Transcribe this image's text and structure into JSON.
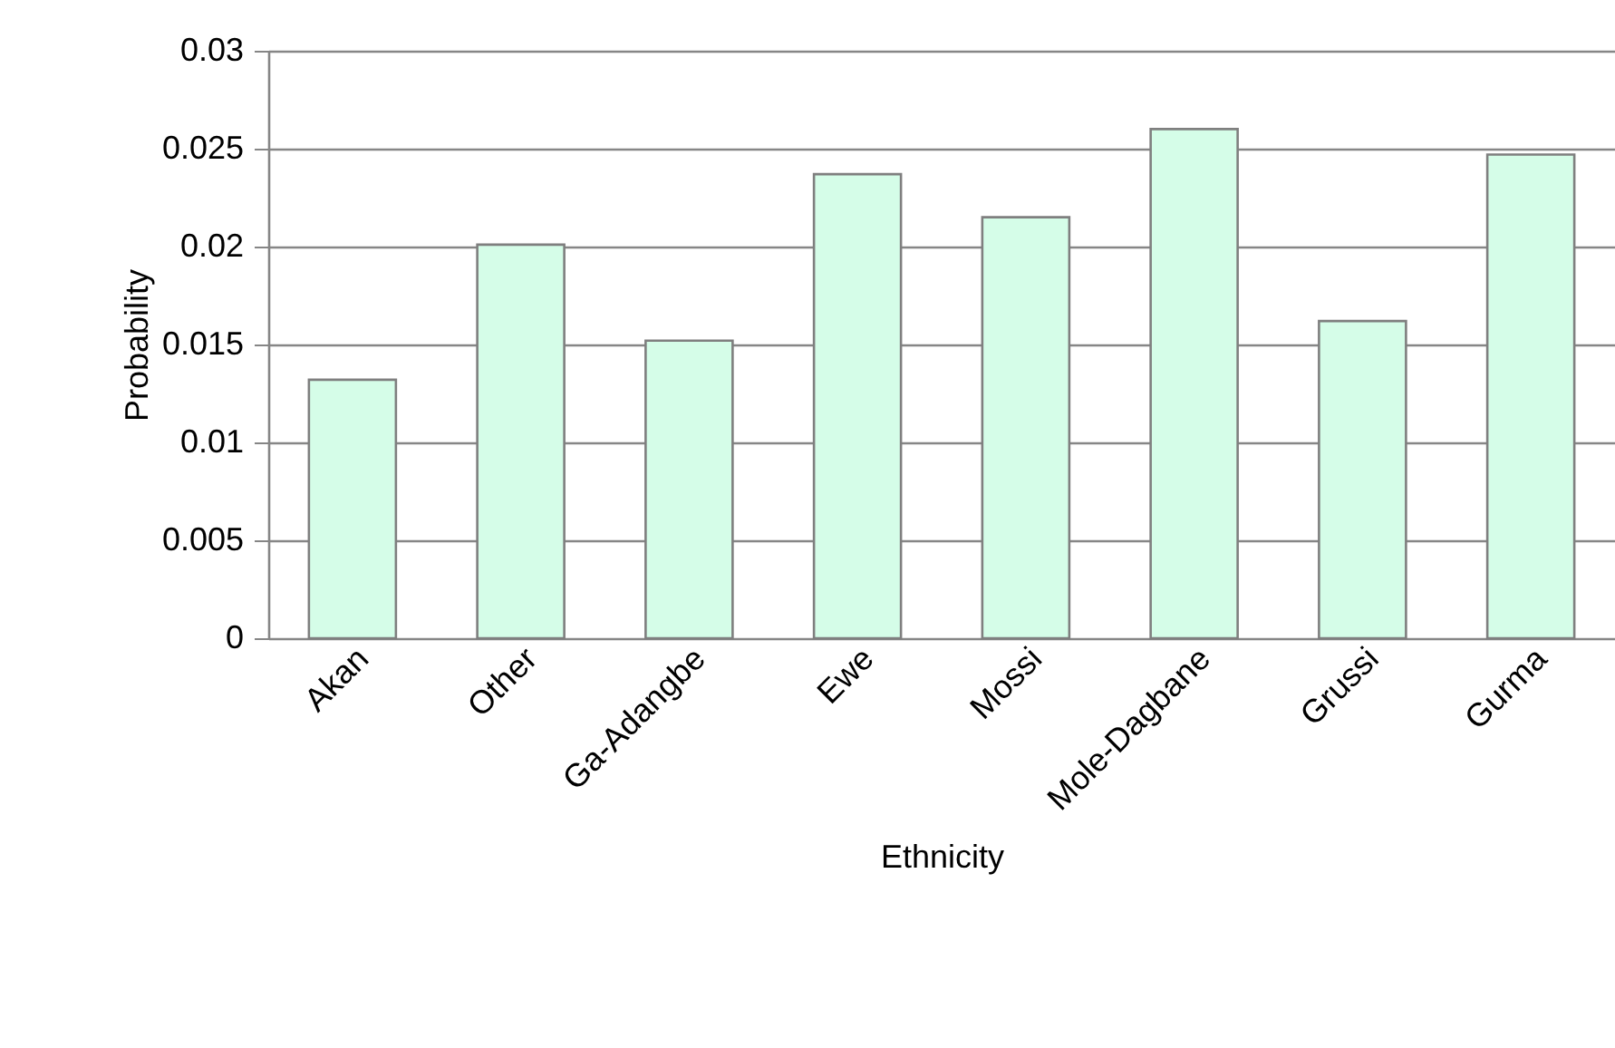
{
  "chart_data": {
    "type": "bar",
    "xlabel": "Ethnicity",
    "ylabel": "Probability",
    "categories": [
      "Akan",
      "Other",
      "Ga-Adangbe",
      "Ewe",
      "Mossi",
      "Mole-Dagbane",
      "Grussi",
      "Gurma"
    ],
    "values": [
      0.0132,
      0.0201,
      0.0152,
      0.0237,
      0.0215,
      0.026,
      0.0162,
      0.0247
    ],
    "color": "#d5fde8",
    "ylim": [
      0,
      0.03
    ],
    "yticks": [
      0,
      0.005,
      0.01,
      0.015,
      0.02,
      0.025,
      0.03
    ],
    "grid": "y"
  }
}
